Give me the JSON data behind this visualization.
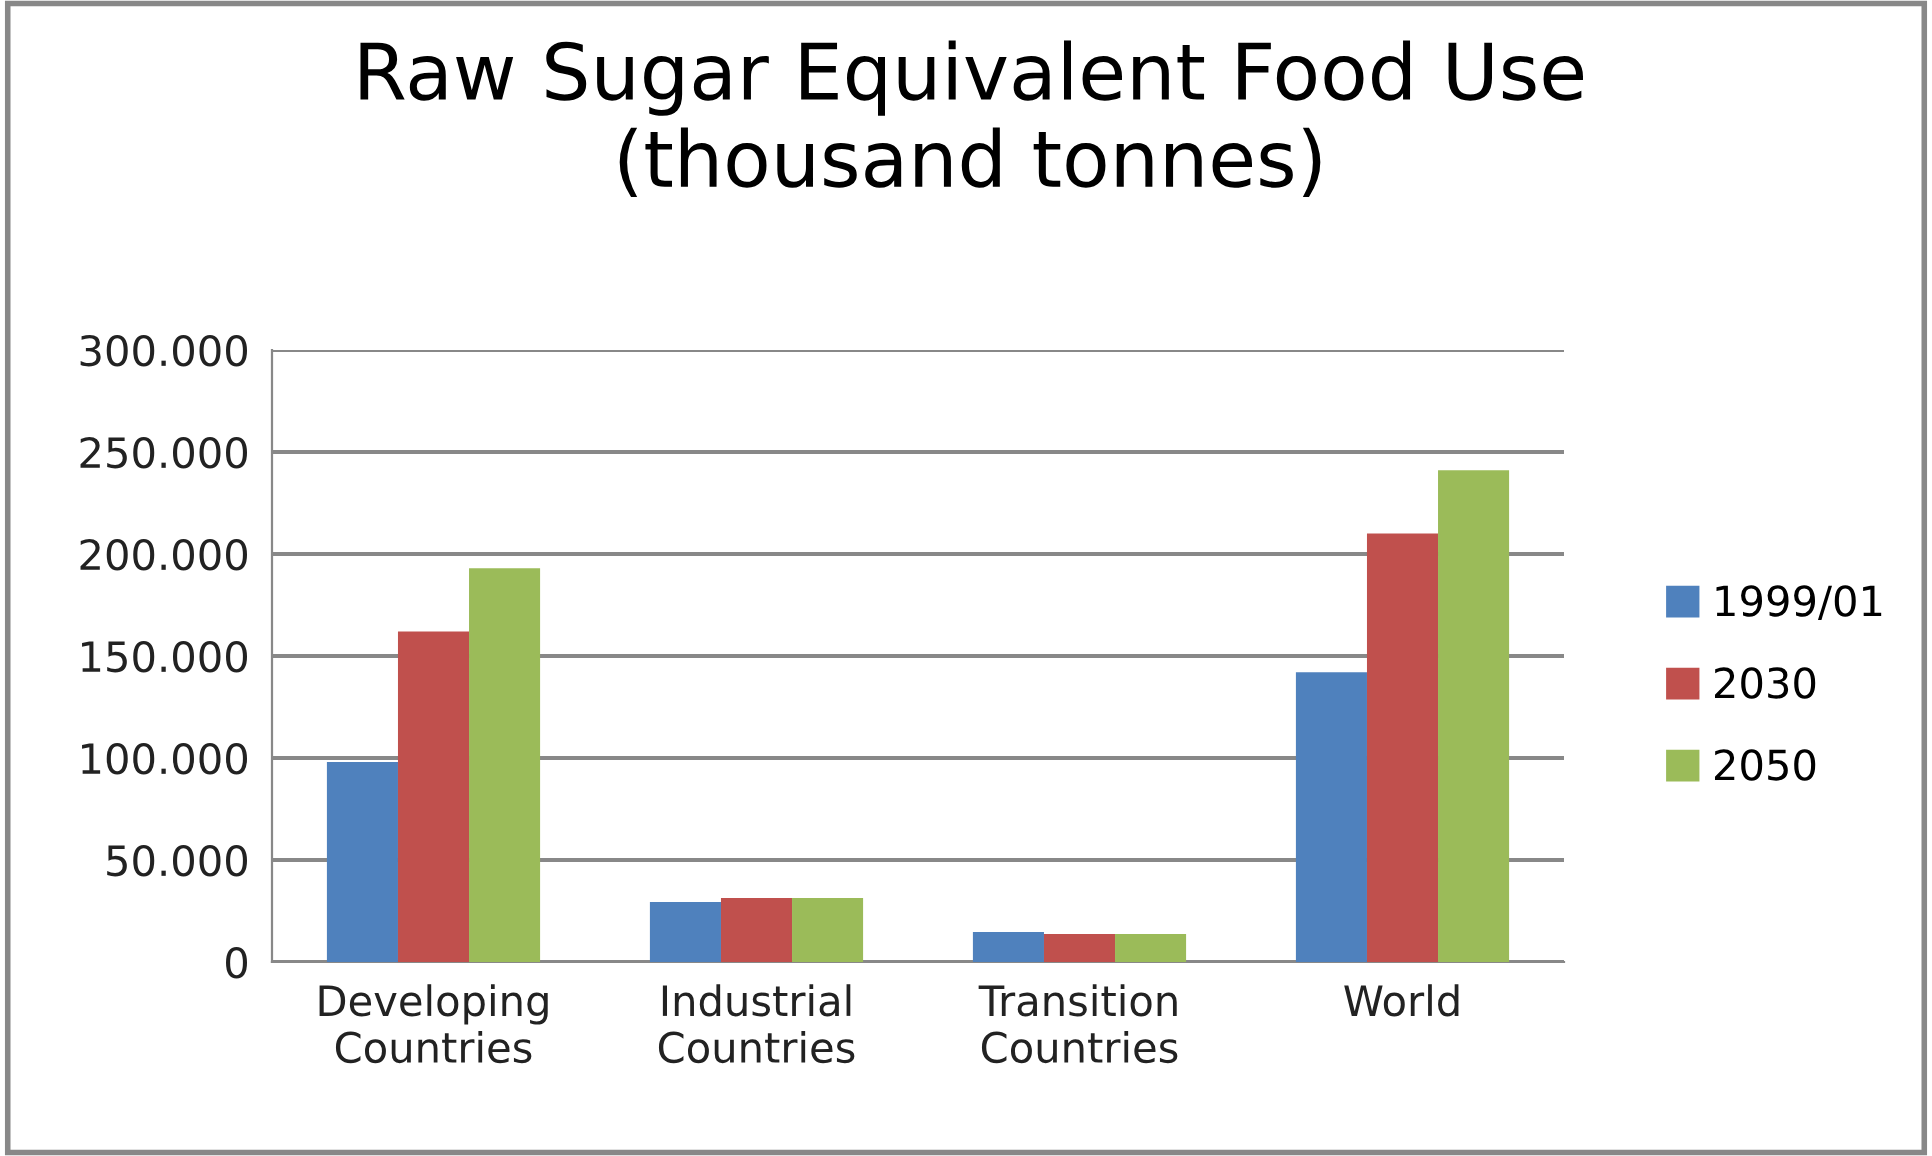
{
  "chart_data": {
    "type": "bar",
    "title": "Raw Sugar Equivalent Food Use\n(thousand tonnes)",
    "categories": [
      "Developing\nCountries",
      "Industrial\nCountries",
      "Transition\nCountries",
      "World"
    ],
    "series": [
      {
        "name": "1999/01",
        "color": "#4f81bd",
        "values": [
          98000,
          29400,
          14700,
          142000
        ]
      },
      {
        "name": "2030",
        "color": "#c0504d",
        "values": [
          162000,
          31400,
          13700,
          210000
        ]
      },
      {
        "name": "2050",
        "color": "#9bbb59",
        "values": [
          193000,
          31400,
          13700,
          241000
        ]
      }
    ],
    "ylim": [
      0,
      300000
    ],
    "yticks": [
      0,
      {
        "value": 50000,
        "label": "50.000"
      },
      {
        "value": 100000,
        "label": "100.000"
      },
      {
        "value": 150000,
        "label": "150.000"
      },
      {
        "value": 200000,
        "label": "200.000"
      },
      {
        "value": 250000,
        "label": "250.000"
      },
      {
        "value": 300000,
        "label": "300.000"
      }
    ],
    "grid": "y",
    "legend": "right"
  }
}
